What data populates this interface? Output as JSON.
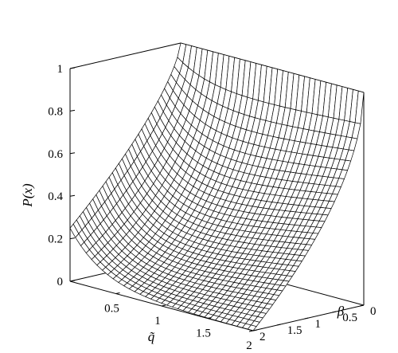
{
  "chart_data": {
    "type": "surface",
    "title": "",
    "zlabel": "P(x)",
    "xlabel": "q̃",
    "ylabel": "β",
    "x_ticks": [
      "0.5",
      "1",
      "1.5",
      "2"
    ],
    "y_ticks": [
      "0",
      "0.5",
      "1",
      "1.5",
      "2"
    ],
    "z_ticks": [
      "0",
      "0.2",
      "0.4",
      "0.6",
      "0.8",
      "1"
    ],
    "xlim": [
      0,
      2
    ],
    "ylim": [
      0,
      2
    ],
    "zlim": [
      0,
      1
    ],
    "grid": false,
    "mesh_color": "#000000",
    "surface_fill": "#ffffff",
    "mesh": {
      "q_samples": 34,
      "beta_samples": 34
    },
    "corner_values": [
      {
        "q": 0,
        "beta": 0,
        "p": 1.0
      },
      {
        "q": 2,
        "beta": 0,
        "p": 1.0
      },
      {
        "q": 0,
        "beta": 2,
        "p": 0.25
      },
      {
        "q": 2,
        "beta": 2,
        "p": 0.0
      }
    ]
  }
}
